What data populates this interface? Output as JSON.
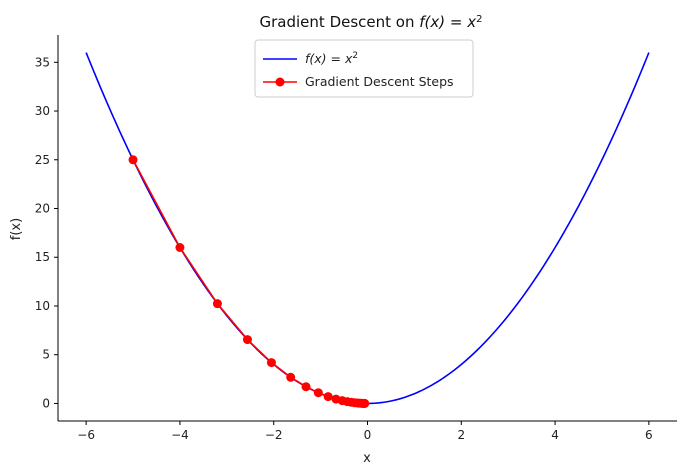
{
  "chart_data": {
    "type": "line",
    "title_prefix": "Gradient Descent on ",
    "title_math": "f(x) = x",
    "title_sup": "2",
    "xlabel": "x",
    "ylabel": "f(x)",
    "xlim": [
      -6.6,
      6.6
    ],
    "ylim": [
      -1.8,
      37.8
    ],
    "xticks": [
      -6,
      -4,
      -2,
      0,
      2,
      4,
      6
    ],
    "yticks": [
      0,
      5,
      10,
      15,
      20,
      25,
      30,
      35
    ],
    "legend_position": "upper center",
    "series": [
      {
        "name_math": "f(x) = x",
        "name_sup": "2",
        "kind": "curve",
        "function": "x^2",
        "x_range": [
          -6,
          6
        ],
        "color": "#0000ff"
      },
      {
        "name": "Gradient Descent Steps",
        "kind": "line-markers",
        "color": "#ff0000",
        "x": [
          -5.0,
          -4.0,
          -3.2,
          -2.56,
          -2.048,
          -1.638,
          -1.311,
          -1.049,
          -0.839,
          -0.671,
          -0.537,
          -0.429,
          -0.344,
          -0.275,
          -0.22,
          -0.176,
          -0.141,
          -0.113,
          -0.09,
          -0.072,
          -0.058
        ],
        "y": [
          25.0,
          16.0,
          10.24,
          6.554,
          4.194,
          2.684,
          1.718,
          1.1,
          0.704,
          0.45,
          0.288,
          0.184,
          0.118,
          0.076,
          0.048,
          0.031,
          0.02,
          0.013,
          0.008,
          0.005,
          0.003
        ]
      }
    ]
  }
}
